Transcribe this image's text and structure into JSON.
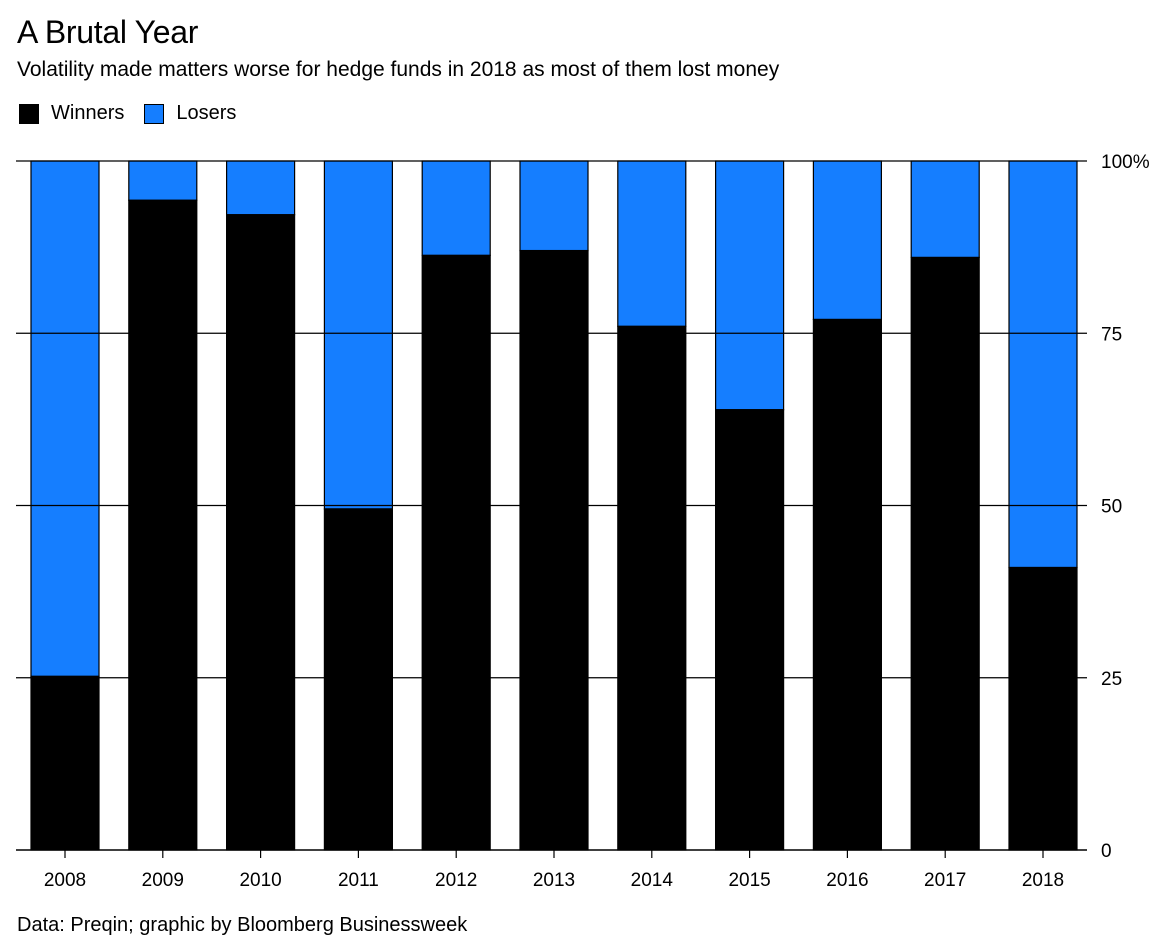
{
  "title": "A Brutal Year",
  "subtitle": "Volatility made matters worse for hedge funds in 2018 as most of them lost money",
  "source": "Data: Preqin; graphic by Bloomberg Businessweek",
  "colors": {
    "winners": "#000000",
    "losers": "#157eff"
  },
  "legend": [
    {
      "label": "Winners",
      "color": "#000000"
    },
    {
      "label": "Losers",
      "color": "#157eff"
    }
  ],
  "chart_data": {
    "type": "bar",
    "stacked": true,
    "categories": [
      "2008",
      "2009",
      "2010",
      "2011",
      "2012",
      "2013",
      "2014",
      "2015",
      "2016",
      "2017",
      "2018"
    ],
    "series": [
      {
        "name": "Winners",
        "values": [
          25.2,
          94.3,
          92.2,
          49.5,
          86.3,
          87.0,
          76.0,
          63.9,
          77.0,
          86.0,
          41.0
        ]
      },
      {
        "name": "Losers",
        "values": [
          74.8,
          5.7,
          7.8,
          50.5,
          13.7,
          13.0,
          24.0,
          36.1,
          23.0,
          14.0,
          59.0
        ]
      }
    ],
    "ylim": [
      0,
      100
    ],
    "yticks": [
      0,
      25,
      50,
      75,
      100
    ],
    "ytick_labels": [
      "0",
      "25",
      "50",
      "75",
      "100%"
    ],
    "y_axis_position": "right",
    "grid": true,
    "legend_position": "top-left"
  }
}
